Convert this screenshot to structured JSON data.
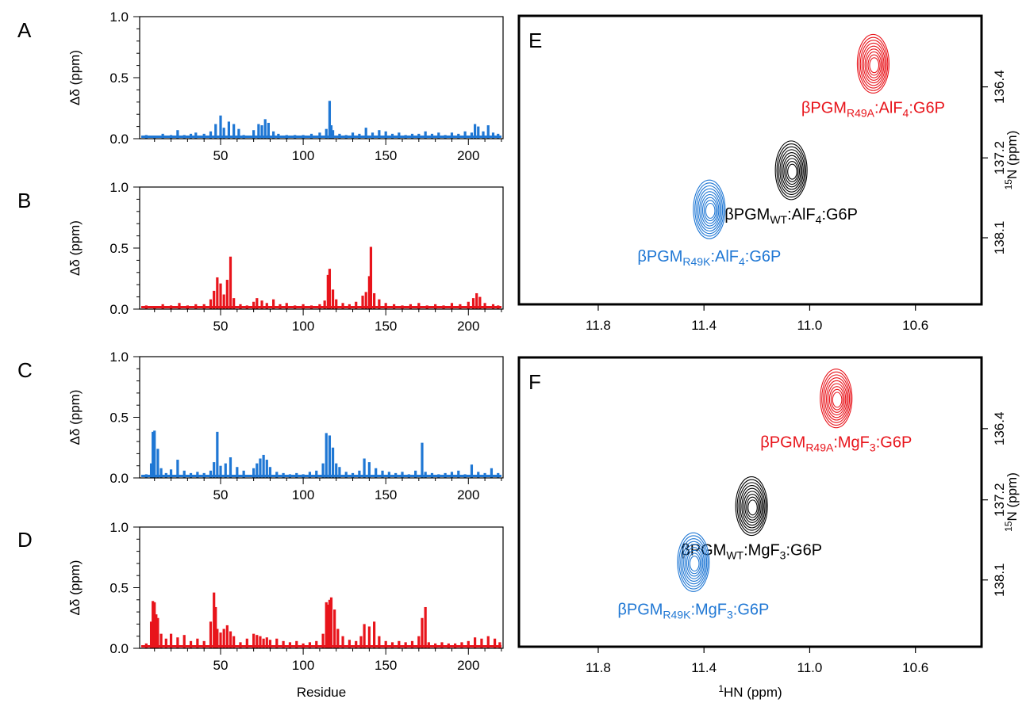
{
  "colors": {
    "blue": "#1f77d4",
    "red": "#e8141b",
    "black": "#000000"
  },
  "chart_data": [
    {
      "panel": "A",
      "type": "bar",
      "color": "blue",
      "xlabel": "",
      "ylabel": "Δδ (ppm)",
      "xlim": [
        1,
        221
      ],
      "ylim": [
        0,
        1.0
      ],
      "xticks": [
        "50",
        "100",
        "150",
        "200"
      ],
      "yticks": [
        "0.0",
        "0.5",
        "1.0"
      ],
      "x": [
        5,
        10,
        15,
        20,
        24,
        28,
        32,
        35,
        40,
        44,
        47,
        50,
        52,
        55,
        58,
        61,
        64,
        70,
        73,
        75,
        77,
        79,
        82,
        85,
        90,
        95,
        100,
        105,
        110,
        114,
        116,
        117,
        118,
        122,
        126,
        130,
        134,
        138,
        142,
        146,
        150,
        154,
        158,
        162,
        166,
        170,
        174,
        178,
        182,
        186,
        190,
        194,
        198,
        202,
        204,
        206,
        209,
        212,
        215,
        218
      ],
      "values": [
        0.03,
        0.02,
        0.04,
        0.03,
        0.07,
        0.03,
        0.04,
        0.05,
        0.04,
        0.06,
        0.12,
        0.19,
        0.09,
        0.14,
        0.12,
        0.08,
        0.03,
        0.07,
        0.12,
        0.11,
        0.16,
        0.13,
        0.06,
        0.04,
        0.03,
        0.03,
        0.03,
        0.04,
        0.05,
        0.08,
        0.31,
        0.11,
        0.07,
        0.04,
        0.03,
        0.05,
        0.04,
        0.09,
        0.05,
        0.07,
        0.06,
        0.04,
        0.05,
        0.03,
        0.04,
        0.04,
        0.06,
        0.04,
        0.05,
        0.03,
        0.05,
        0.04,
        0.06,
        0.05,
        0.12,
        0.1,
        0.06,
        0.11,
        0.05,
        0.04
      ]
    },
    {
      "panel": "B",
      "type": "bar",
      "color": "red",
      "xlabel": "",
      "ylabel": "Δδ (ppm)",
      "xlim": [
        1,
        221
      ],
      "ylim": [
        0,
        1.0
      ],
      "xticks": [
        "50",
        "100",
        "150",
        "200"
      ],
      "yticks": [
        "0.0",
        "0.5",
        "1.0"
      ],
      "x": [
        5,
        10,
        15,
        20,
        25,
        30,
        35,
        40,
        44,
        46,
        48,
        50,
        52,
        54,
        56,
        58,
        62,
        66,
        70,
        72,
        75,
        78,
        82,
        86,
        90,
        95,
        100,
        105,
        110,
        113,
        115,
        116,
        118,
        120,
        124,
        128,
        132,
        136,
        138,
        140,
        141,
        143,
        146,
        150,
        155,
        160,
        165,
        170,
        175,
        180,
        185,
        190,
        195,
        200,
        203,
        205,
        207,
        210,
        215,
        218
      ],
      "values": [
        0.03,
        0.02,
        0.04,
        0.03,
        0.05,
        0.03,
        0.04,
        0.04,
        0.08,
        0.15,
        0.26,
        0.21,
        0.12,
        0.24,
        0.43,
        0.09,
        0.04,
        0.03,
        0.06,
        0.09,
        0.07,
        0.05,
        0.08,
        0.04,
        0.05,
        0.03,
        0.04,
        0.03,
        0.04,
        0.07,
        0.28,
        0.33,
        0.16,
        0.08,
        0.05,
        0.04,
        0.06,
        0.11,
        0.14,
        0.27,
        0.51,
        0.13,
        0.08,
        0.05,
        0.04,
        0.03,
        0.04,
        0.05,
        0.03,
        0.04,
        0.03,
        0.05,
        0.04,
        0.06,
        0.09,
        0.13,
        0.1,
        0.05,
        0.04,
        0.03
      ]
    },
    {
      "panel": "C",
      "type": "bar",
      "color": "blue",
      "xlabel": "",
      "ylabel": "Δδ (ppm)",
      "xlim": [
        1,
        221
      ],
      "ylim": [
        0,
        1.0
      ],
      "xticks": [
        "50",
        "100",
        "150",
        "200"
      ],
      "yticks": [
        "0.0",
        "0.5",
        "1.0"
      ],
      "x": [
        5,
        8,
        9,
        10,
        12,
        14,
        17,
        20,
        24,
        28,
        32,
        36,
        40,
        44,
        46,
        48,
        50,
        53,
        56,
        60,
        64,
        70,
        72,
        74,
        76,
        78,
        80,
        84,
        88,
        92,
        96,
        100,
        104,
        108,
        112,
        114,
        116,
        118,
        120,
        122,
        126,
        130,
        134,
        137,
        140,
        144,
        148,
        152,
        156,
        160,
        164,
        168,
        172,
        174,
        178,
        182,
        186,
        190,
        194,
        198,
        202,
        206,
        210,
        214,
        218
      ],
      "values": [
        0.03,
        0.12,
        0.38,
        0.39,
        0.24,
        0.08,
        0.04,
        0.07,
        0.15,
        0.06,
        0.04,
        0.05,
        0.04,
        0.06,
        0.13,
        0.38,
        0.1,
        0.12,
        0.17,
        0.09,
        0.06,
        0.08,
        0.12,
        0.16,
        0.19,
        0.15,
        0.09,
        0.05,
        0.04,
        0.03,
        0.04,
        0.03,
        0.05,
        0.06,
        0.12,
        0.37,
        0.35,
        0.25,
        0.12,
        0.09,
        0.05,
        0.04,
        0.06,
        0.16,
        0.13,
        0.08,
        0.06,
        0.05,
        0.04,
        0.05,
        0.03,
        0.06,
        0.29,
        0.05,
        0.04,
        0.03,
        0.04,
        0.05,
        0.06,
        0.03,
        0.11,
        0.05,
        0.04,
        0.08,
        0.04
      ]
    },
    {
      "panel": "D",
      "type": "bar",
      "color": "red",
      "xlabel": "Residue",
      "ylabel": "Δδ (ppm)",
      "xlim": [
        1,
        221
      ],
      "ylim": [
        0,
        1.0
      ],
      "xticks": [
        "50",
        "100",
        "150",
        "200"
      ],
      "yticks": [
        "0.0",
        "0.5",
        "1.0"
      ],
      "x": [
        5,
        8,
        9,
        10,
        11,
        12,
        14,
        17,
        20,
        24,
        28,
        32,
        36,
        40,
        44,
        46,
        47,
        48,
        50,
        52,
        54,
        56,
        58,
        62,
        66,
        70,
        72,
        74,
        76,
        78,
        80,
        84,
        88,
        92,
        96,
        100,
        104,
        108,
        112,
        114,
        115,
        116,
        117,
        119,
        121,
        124,
        128,
        132,
        135,
        137,
        140,
        143,
        146,
        150,
        154,
        158,
        162,
        166,
        170,
        172,
        174,
        176,
        180,
        184,
        188,
        192,
        196,
        200,
        204,
        208,
        212,
        216,
        219
      ],
      "values": [
        0.04,
        0.22,
        0.39,
        0.38,
        0.28,
        0.25,
        0.12,
        0.08,
        0.12,
        0.09,
        0.11,
        0.06,
        0.08,
        0.06,
        0.22,
        0.46,
        0.34,
        0.16,
        0.13,
        0.16,
        0.19,
        0.14,
        0.1,
        0.05,
        0.08,
        0.12,
        0.11,
        0.1,
        0.08,
        0.09,
        0.07,
        0.08,
        0.06,
        0.05,
        0.06,
        0.04,
        0.05,
        0.06,
        0.12,
        0.38,
        0.36,
        0.4,
        0.42,
        0.32,
        0.16,
        0.1,
        0.07,
        0.06,
        0.1,
        0.2,
        0.18,
        0.22,
        0.1,
        0.06,
        0.05,
        0.06,
        0.05,
        0.06,
        0.1,
        0.25,
        0.34,
        0.05,
        0.04,
        0.05,
        0.04,
        0.04,
        0.05,
        0.06,
        0.09,
        0.08,
        0.1,
        0.08,
        0.05
      ]
    },
    {
      "panel": "E",
      "type": "contour",
      "xlabel": "",
      "ylabel": "15N (ppm)",
      "xlim": [
        12.1,
        10.35
      ],
      "ylim": [
        138.85,
        135.6
      ],
      "xticks": [
        "11.8",
        "11.4",
        "11.0",
        "10.6"
      ],
      "yticks": [
        "136.4",
        "137.2",
        "138.1"
      ],
      "peaks": [
        {
          "label": "βPGM_R49A:AlF4:G6P",
          "label_main": "βPGM",
          "label_sub": "R49A",
          "label_rest": ":AlF",
          "label_sub2": "4",
          "label_tail": ":G6P",
          "color": "red",
          "x": 10.76,
          "y": 136.14
        },
        {
          "label": "βPGM_WT:AlF4:G6P",
          "label_main": "βPGM",
          "label_sub": "WT",
          "label_rest": ":AlF",
          "label_sub2": "4",
          "label_tail": ":G6P",
          "color": "black",
          "x": 11.07,
          "y": 137.34
        },
        {
          "label": "βPGM_R49K:AlF4:G6P",
          "label_main": "βPGM",
          "label_sub": "R49K",
          "label_rest": ":AlF",
          "label_sub2": "4",
          "label_tail": ":G6P",
          "color": "blue",
          "x": 11.38,
          "y": 137.78
        }
      ]
    },
    {
      "panel": "F",
      "type": "contour",
      "xlabel": "1HN (ppm)",
      "ylabel": "15N (ppm)",
      "xlim": [
        12.1,
        10.35
      ],
      "ylim": [
        138.85,
        135.6
      ],
      "xticks": [
        "11.8",
        "11.4",
        "11.0",
        "10.6"
      ],
      "yticks": [
        "136.4",
        "137.2",
        "138.1"
      ],
      "peaks": [
        {
          "label": "βPGM_R49A:MgF3:G6P",
          "label_main": "βPGM",
          "label_sub": "R49A",
          "label_rest": ":MgF",
          "label_sub2": "3",
          "label_tail": ":G6P",
          "color": "red",
          "x": 10.9,
          "y": 136.06
        },
        {
          "label": "βPGM_WT:MgF3:G6P",
          "label_main": "βPGM",
          "label_sub": "WT",
          "label_rest": ":MgF",
          "label_sub2": "3",
          "label_tail": ":G6P",
          "color": "black",
          "x": 11.22,
          "y": 137.27
        },
        {
          "label": "βPGM_R49K:MgF3:G6P",
          "label_main": "βPGM",
          "label_sub": "R49K",
          "label_rest": ":MgF",
          "label_sub2": "3",
          "label_tail": ":G6P",
          "color": "blue",
          "x": 11.44,
          "y": 137.9
        }
      ]
    }
  ]
}
